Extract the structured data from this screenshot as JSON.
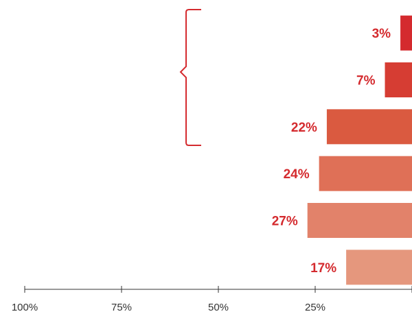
{
  "chart_data": {
    "type": "bar",
    "orientation": "horizontal-reversed",
    "categories": [
      "",
      "",
      "",
      "",
      "",
      ""
    ],
    "values": [
      3,
      7,
      22,
      24,
      27,
      17
    ],
    "value_labels": [
      "3%",
      "7%",
      "22%",
      "24%",
      "27%",
      "17%"
    ],
    "bar_colors": [
      "#d42a2e",
      "#d63d33",
      "#da5a40",
      "#df7057",
      "#e2826a",
      "#e5977d"
    ],
    "label_color": "#d42a2e",
    "bracket_color": "#d42a2e",
    "bracket_spans_bars": [
      0,
      2
    ],
    "xlim": [
      0,
      100
    ],
    "axis_direction": "reversed",
    "xticks": [
      100,
      75,
      50,
      25
    ],
    "xtick_labels": [
      "100%",
      "75%",
      "50%",
      "25%"
    ],
    "title": "",
    "xlabel": "",
    "ylabel": "",
    "grid": false
  }
}
